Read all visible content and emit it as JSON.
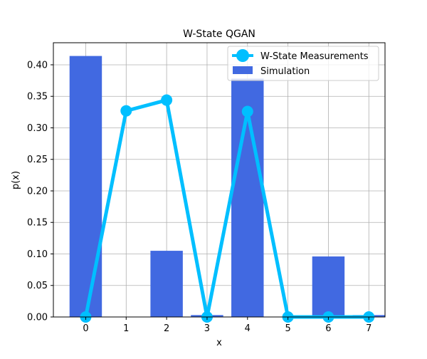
{
  "chart_data": {
    "type": "bar",
    "title": "W-State QGAN",
    "xlabel": "x",
    "ylabel": "p(x)",
    "x": [
      0,
      1,
      2,
      3,
      4,
      5,
      6,
      7
    ],
    "xlim": [
      -0.8,
      7.4
    ],
    "ylim": [
      0,
      0.435
    ],
    "xticks": [
      "0",
      "1",
      "2",
      "3",
      "4",
      "5",
      "6",
      "7"
    ],
    "yticks": [
      0.0,
      0.05,
      0.1,
      0.15,
      0.2,
      0.25,
      0.3,
      0.35,
      0.4
    ],
    "ytick_labels": [
      "0.00",
      "0.05",
      "0.10",
      "0.15",
      "0.20",
      "0.25",
      "0.30",
      "0.35",
      "0.40"
    ],
    "grid": true,
    "legend_position": "top-right",
    "series": [
      {
        "name": "W-State Measurements",
        "kind": "line",
        "color": "#00bfff",
        "values": [
          0.0,
          0.327,
          0.344,
          0.0,
          0.326,
          0.0,
          0.0,
          0.0
        ]
      },
      {
        "name": "Simulation",
        "kind": "bar",
        "color": "#4169e1",
        "values": [
          0.414,
          0.0,
          0.105,
          0.003,
          0.378,
          0.0,
          0.096,
          0.003
        ]
      }
    ]
  }
}
